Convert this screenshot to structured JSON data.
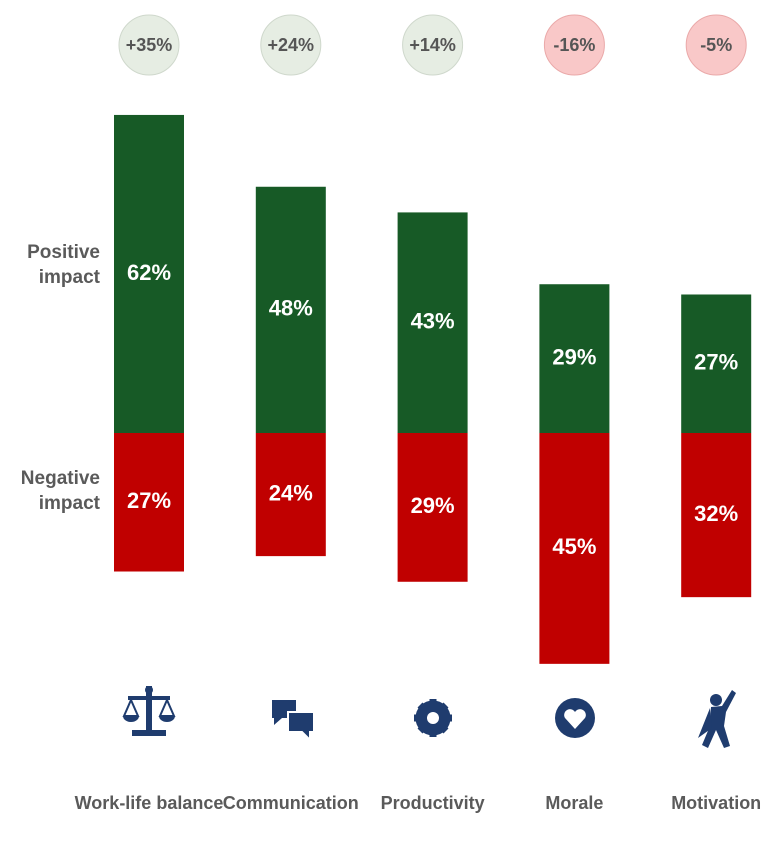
{
  "chart_data": {
    "type": "diverging_bar",
    "categories": [
      "Work-life balance",
      "Communication",
      "Productivity",
      "Morale",
      "Motivation"
    ],
    "series": [
      {
        "name": "Positive impact",
        "color": "#175a26",
        "values": [
          62,
          48,
          43,
          29,
          27
        ],
        "value_labels": [
          "62%",
          "48%",
          "43%",
          "29%",
          "27%"
        ]
      },
      {
        "name": "Negative impact",
        "color": "#c00000",
        "values": [
          27,
          24,
          29,
          45,
          32
        ],
        "value_labels": [
          "27%",
          "24%",
          "29%",
          "45%",
          "32%"
        ]
      }
    ],
    "net": {
      "values": [
        35,
        24,
        14,
        -16,
        -5
      ],
      "value_labels": [
        "+35%",
        "+24%",
        "+14%",
        "-16%",
        "-5%"
      ]
    }
  }
}
